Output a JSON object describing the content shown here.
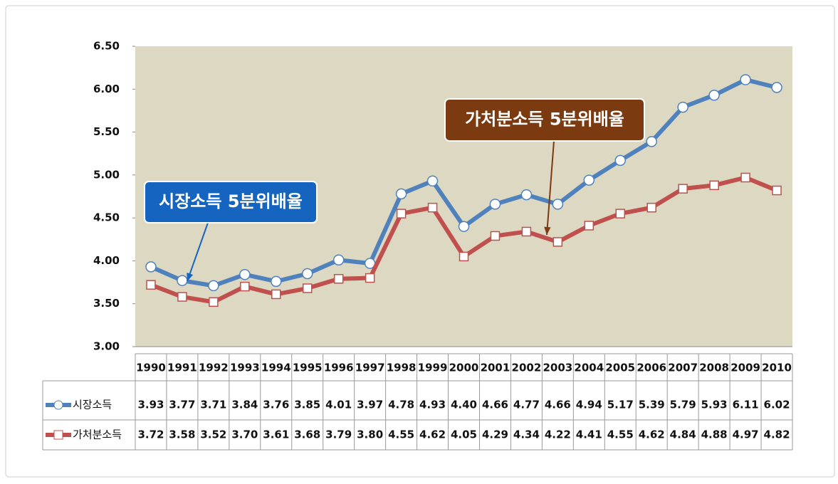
{
  "chart_data": {
    "type": "line",
    "categories": [
      "1990",
      "1991",
      "1992",
      "1993",
      "1994",
      "1995",
      "1996",
      "1997",
      "1998",
      "1999",
      "2000",
      "2001",
      "2002",
      "2003",
      "2004",
      "2005",
      "2006",
      "2007",
      "2008",
      "2009",
      "2010"
    ],
    "series": [
      {
        "name": "시장소득",
        "color": "#4f81bd",
        "marker": "circle",
        "values": [
          3.93,
          3.77,
          3.71,
          3.84,
          3.76,
          3.85,
          4.01,
          3.97,
          4.78,
          4.93,
          4.4,
          4.66,
          4.77,
          4.66,
          4.94,
          5.17,
          5.39,
          5.79,
          5.93,
          6.11,
          6.02
        ],
        "value_labels": [
          "3.93",
          "3.77",
          "3.71",
          "3.84",
          "3.76",
          "3.85",
          "4.01",
          "3.97",
          "4.78",
          "4.93",
          "4.40",
          "4.66",
          "4.77",
          "4.66",
          "4.94",
          "5.17",
          "5.39",
          "5.79",
          "5.93",
          "6.11",
          "6.02"
        ]
      },
      {
        "name": "가처분소득",
        "color": "#c0504d",
        "marker": "square",
        "values": [
          3.72,
          3.58,
          3.52,
          3.7,
          3.61,
          3.68,
          3.79,
          3.8,
          4.55,
          4.62,
          4.05,
          4.29,
          4.34,
          4.22,
          4.41,
          4.55,
          4.62,
          4.84,
          4.88,
          4.97,
          4.82
        ],
        "value_labels": [
          "3.72",
          "3.58",
          "3.52",
          "3.70",
          "3.61",
          "3.68",
          "3.79",
          "3.80",
          "4.55",
          "4.62",
          "4.05",
          "4.29",
          "4.34",
          "4.22",
          "4.41",
          "4.55",
          "4.62",
          "4.84",
          "4.88",
          "4.97",
          "4.82"
        ]
      }
    ],
    "ylim": [
      3,
      6.5
    ],
    "yticks": [
      {
        "value": 3,
        "label": "3.00"
      },
      {
        "value": 3.5,
        "label": "3.50"
      },
      {
        "value": 4,
        "label": "4.00"
      },
      {
        "value": 4.5,
        "label": "4.50"
      },
      {
        "value": 5,
        "label": "5.00"
      },
      {
        "value": 5.5,
        "label": "5.50"
      },
      {
        "value": 6,
        "label": "6.00"
      },
      {
        "value": 6.5,
        "label": "6.50"
      }
    ],
    "annotations": [
      {
        "text": "시장소득 5분위배율",
        "color": "#1565c0"
      },
      {
        "text": "가처분소득 5분위배율",
        "color": "#7b3a10"
      }
    ]
  }
}
